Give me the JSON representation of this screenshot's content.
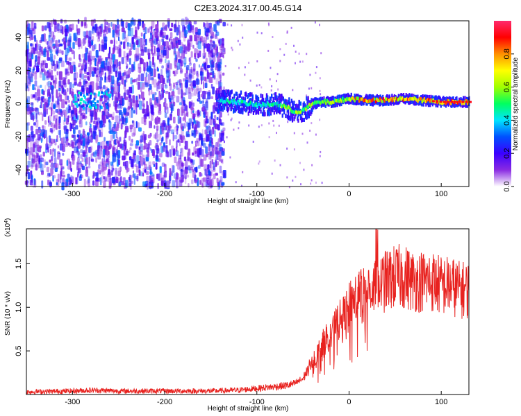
{
  "chart_data": [
    {
      "type": "heatmap",
      "title": "C2E3.2024.317.00.45.G14",
      "xlabel": "Height of straight line (km)",
      "ylabel": "Frequency (Hz)",
      "xlim": [
        -350,
        130
      ],
      "ylim": [
        -50,
        50
      ],
      "x_ticks": [
        -300,
        -200,
        -100,
        0,
        100
      ],
      "y_ticks": [
        -40,
        -20,
        0,
        20,
        40
      ],
      "colorbar": {
        "label": "Normalized spectral amplitude",
        "range": [
          0,
          1
        ],
        "ticks": [
          0.0,
          0.2,
          0.4,
          0.6,
          0.8
        ],
        "colors": [
          "#ffffff",
          "#8a2be2",
          "#3a00ff",
          "#0050ff",
          "#00e5ff",
          "#00ff60",
          "#a0ff00",
          "#ffff00",
          "#ff9000",
          "#ff0000",
          "#ff2a6d"
        ]
      },
      "signal_track": {
        "x": [
          -140,
          -120,
          -100,
          -80,
          -70,
          -60,
          -50,
          -40,
          -30,
          -20,
          -10,
          0,
          20,
          40,
          60,
          80,
          100,
          120,
          130
        ],
        "y": [
          2,
          1,
          -1,
          0,
          -2,
          -5,
          -4,
          0,
          1,
          1,
          2,
          3,
          2,
          2,
          3,
          2,
          1,
          1,
          1
        ]
      },
      "grid": false
    },
    {
      "type": "line",
      "xlabel": "Height of straight line (km)",
      "ylabel": "SNR (10 * v/v)",
      "y_scale_label": "(x10^4)",
      "xlim": [
        -350,
        130
      ],
      "ylim": [
        0,
        1.9
      ],
      "x_ticks": [
        -300,
        -200,
        -100,
        0,
        100
      ],
      "y_ticks": [
        0.5,
        1.0,
        1.5
      ],
      "series": [
        {
          "color": "#e8221f",
          "x": [
            -350,
            -300,
            -280,
            -250,
            -200,
            -150,
            -120,
            -100,
            -90,
            -80,
            -70,
            -60,
            -50,
            -45,
            -40,
            -35,
            -30,
            -25,
            -20,
            -15,
            -10,
            -5,
            0,
            5,
            10,
            20,
            30,
            40,
            50,
            60,
            70,
            80,
            90,
            100,
            110,
            120,
            130
          ],
          "values": [
            0.03,
            0.04,
            0.05,
            0.04,
            0.04,
            0.04,
            0.05,
            0.07,
            0.08,
            0.09,
            0.1,
            0.12,
            0.18,
            0.28,
            0.4,
            0.45,
            0.55,
            0.65,
            0.7,
            0.8,
            0.85,
            0.9,
            1.0,
            1.1,
            1.15,
            1.2,
            1.25,
            1.3,
            1.35,
            1.35,
            1.3,
            1.3,
            1.3,
            1.25,
            1.25,
            1.2,
            1.2
          ]
        }
      ],
      "grid": false
    }
  ]
}
